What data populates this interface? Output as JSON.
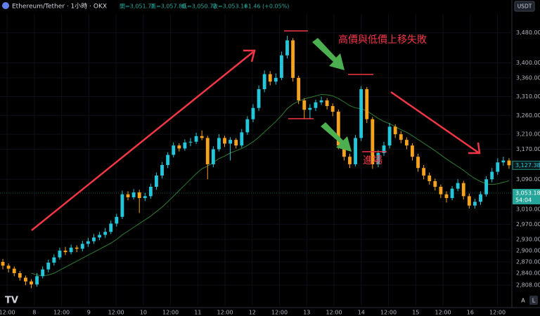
{
  "chart_data": {
    "type": "candlestick",
    "symbol": "Ethereum/Tether · 1小時 · OKX",
    "ohlc_header": [
      "開=3,051.71",
      "高=3,057.80",
      "低=3,050.72",
      "收=3,053.18"
    ],
    "change": "+1.46 (+0.05%)",
    "currency": "USDT",
    "annotations": [
      "高價與低價上移失敗",
      "進場"
    ],
    "buttons": [
      "A",
      "L"
    ],
    "up_color": "#26c6da",
    "down_color": "#f5a21c",
    "ma_color": "#2e7d32",
    "ylim": [
      2754,
      3530
    ],
    "yticks": [
      {
        "value": 3480,
        "label": "3,480.00"
      },
      {
        "value": 3400,
        "label": "3,400.00"
      },
      {
        "value": 3360,
        "label": "3,360.00"
      },
      {
        "value": 3310,
        "label": "3,310.00"
      },
      {
        "value": 3260,
        "label": "3,260.00"
      },
      {
        "value": 3210,
        "label": "3,210.00"
      },
      {
        "value": 3170,
        "label": "3,170.00"
      },
      {
        "value": 3090,
        "label": "3,090.00"
      },
      {
        "value": 3010,
        "label": "3,010.00"
      },
      {
        "value": 2970,
        "label": "2,970.00"
      },
      {
        "value": 2930,
        "label": "2,930.00"
      },
      {
        "value": 2900,
        "label": "2,900.00"
      },
      {
        "value": 2870,
        "label": "2,870.00"
      },
      {
        "value": 2840,
        "label": "2,840.00"
      },
      {
        "value": 2808,
        "label": "2,808.00"
      }
    ],
    "xlim": [
      -0.5,
      89.5
    ],
    "xticks": [
      {
        "value": 0.75,
        "label": "12:00"
      },
      {
        "value": 5.54,
        "label": "8"
      },
      {
        "value": 10.33,
        "label": "12:00"
      },
      {
        "value": 15.12,
        "label": "9"
      },
      {
        "value": 19.91,
        "label": "12:00"
      },
      {
        "value": 24.7,
        "label": "10"
      },
      {
        "value": 29.49,
        "label": "12:00"
      },
      {
        "value": 34.28,
        "label": "11"
      },
      {
        "value": 39.07,
        "label": "12:00"
      },
      {
        "value": 43.86,
        "label": "12"
      },
      {
        "value": 48.65,
        "label": "12:00"
      },
      {
        "value": 53.44,
        "label": "13"
      },
      {
        "value": 58.23,
        "label": "12:00"
      },
      {
        "value": 63.02,
        "label": "14"
      },
      {
        "value": 67.81,
        "label": "12:00"
      },
      {
        "value": 72.6,
        "label": "15"
      },
      {
        "value": 77.39,
        "label": "12:00"
      },
      {
        "value": 82.18,
        "label": "16"
      },
      {
        "value": 86.97,
        "label": "12:00"
      }
    ],
    "last_price": {
      "value": 3127.38,
      "label": "3,127.38"
    },
    "current_price": {
      "value": 3053.18,
      "label": "3,053.18",
      "countdown": "54:04"
    },
    "candles": [
      [
        2870,
        2878,
        2850,
        2860
      ],
      [
        2860,
        2866,
        2842,
        2852
      ],
      [
        2852,
        2858,
        2832,
        2840
      ],
      [
        2840,
        2846,
        2820,
        2828
      ],
      [
        2828,
        2834,
        2808,
        2818
      ],
      [
        2818,
        2824,
        2800,
        2810
      ],
      [
        2810,
        2840,
        2804,
        2832
      ],
      [
        2832,
        2858,
        2826,
        2850
      ],
      [
        2850,
        2876,
        2842,
        2868
      ],
      [
        2868,
        2890,
        2860,
        2882
      ],
      [
        2882,
        2908,
        2876,
        2900
      ],
      [
        2900,
        2910,
        2888,
        2896
      ],
      [
        2896,
        2916,
        2890,
        2908
      ],
      [
        2908,
        2914,
        2896,
        2905
      ],
      [
        2905,
        2926,
        2898,
        2918
      ],
      [
        2918,
        2934,
        2910,
        2925
      ],
      [
        2925,
        2944,
        2918,
        2935
      ],
      [
        2935,
        2950,
        2928,
        2942
      ],
      [
        2942,
        2960,
        2934,
        2950
      ],
      [
        2950,
        2980,
        2944,
        2972
      ],
      [
        2972,
        2998,
        2964,
        2990
      ],
      [
        2990,
        3060,
        2984,
        3050
      ],
      [
        3050,
        3058,
        3034,
        3042
      ],
      [
        3042,
        3064,
        3036,
        3055
      ],
      [
        3055,
        3062,
        3000,
        3040
      ],
      [
        3040,
        3054,
        3032,
        3045
      ],
      [
        3045,
        3078,
        3038,
        3070
      ],
      [
        3070,
        3108,
        3062,
        3100
      ],
      [
        3100,
        3136,
        3092,
        3128
      ],
      [
        3128,
        3162,
        3120,
        3155
      ],
      [
        3155,
        3188,
        3148,
        3180
      ],
      [
        3180,
        3186,
        3164,
        3172
      ],
      [
        3172,
        3196,
        3166,
        3188
      ],
      [
        3188,
        3200,
        3178,
        3190
      ],
      [
        3190,
        3214,
        3184,
        3205
      ],
      [
        3205,
        3220,
        3194,
        3200
      ],
      [
        3200,
        3206,
        3090,
        3130
      ],
      [
        3130,
        3178,
        3122,
        3170
      ],
      [
        3170,
        3210,
        3164,
        3200
      ],
      [
        3200,
        3206,
        3176,
        3185
      ],
      [
        3185,
        3202,
        3140,
        3195
      ],
      [
        3195,
        3200,
        3172,
        3180
      ],
      [
        3180,
        3224,
        3174,
        3215
      ],
      [
        3215,
        3258,
        3208,
        3250
      ],
      [
        3250,
        3290,
        3242,
        3280
      ],
      [
        3280,
        3340,
        3272,
        3330
      ],
      [
        3330,
        3380,
        3322,
        3370
      ],
      [
        3370,
        3378,
        3340,
        3350
      ],
      [
        3350,
        3372,
        3342,
        3360
      ],
      [
        3360,
        3430,
        3354,
        3420
      ],
      [
        3420,
        3472,
        3412,
        3460
      ],
      [
        3460,
        3466,
        3350,
        3360
      ],
      [
        3360,
        3366,
        3290,
        3300
      ],
      [
        3300,
        3306,
        3250,
        3275
      ],
      [
        3275,
        3290,
        3250,
        3280
      ],
      [
        3280,
        3302,
        3272,
        3295
      ],
      [
        3295,
        3310,
        3288,
        3300
      ],
      [
        3300,
        3306,
        3276,
        3285
      ],
      [
        3285,
        3292,
        3258,
        3270
      ],
      [
        3270,
        3276,
        3170,
        3180
      ],
      [
        3180,
        3188,
        3140,
        3150
      ],
      [
        3150,
        3158,
        3120,
        3130
      ],
      [
        3130,
        3208,
        3124,
        3200
      ],
      [
        3200,
        3338,
        3192,
        3330
      ],
      [
        3330,
        3336,
        3240,
        3250
      ],
      [
        3250,
        3256,
        3118,
        3130
      ],
      [
        3130,
        3168,
        3122,
        3160
      ],
      [
        3160,
        3190,
        3152,
        3180
      ],
      [
        3180,
        3240,
        3172,
        3230
      ],
      [
        3230,
        3236,
        3200,
        3210
      ],
      [
        3210,
        3218,
        3186,
        3195
      ],
      [
        3195,
        3202,
        3170,
        3180
      ],
      [
        3180,
        3186,
        3140,
        3150
      ],
      [
        3150,
        3158,
        3110,
        3120
      ],
      [
        3120,
        3128,
        3090,
        3100
      ],
      [
        3100,
        3108,
        3076,
        3085
      ],
      [
        3085,
        3092,
        3060,
        3070
      ],
      [
        3070,
        3076,
        3040,
        3050
      ],
      [
        3050,
        3058,
        3028,
        3040
      ],
      [
        3040,
        3072,
        3034,
        3065
      ],
      [
        3065,
        3090,
        3058,
        3080
      ],
      [
        3080,
        3086,
        3036,
        3045
      ],
      [
        3045,
        3052,
        3012,
        3020
      ],
      [
        3020,
        3038,
        3012,
        3030
      ],
      [
        3030,
        3058,
        3022,
        3050
      ],
      [
        3050,
        3098,
        3044,
        3090
      ],
      [
        3090,
        3120,
        3082,
        3110
      ],
      [
        3110,
        3146,
        3102,
        3135
      ],
      [
        3135,
        3150,
        3126,
        3140
      ],
      [
        3140,
        3146,
        3118,
        3127.38
      ]
    ],
    "ma": [
      null,
      null,
      null,
      null,
      null,
      2840,
      2835,
      2833,
      2835,
      2840,
      2848,
      2856,
      2864,
      2872,
      2880,
      2888,
      2896,
      2904,
      2912,
      2920,
      2930,
      2942,
      2952,
      2962,
      2972,
      2982,
      2992,
      3004,
      3016,
      3030,
      3045,
      3060,
      3075,
      3090,
      3105,
      3118,
      3125,
      3135,
      3145,
      3152,
      3160,
      3166,
      3172,
      3180,
      3190,
      3202,
      3216,
      3230,
      3244,
      3260,
      3278,
      3290,
      3298,
      3304,
      3308,
      3312,
      3316,
      3315,
      3312,
      3305,
      3296,
      3286,
      3280,
      3278,
      3272,
      3262,
      3252,
      3244,
      3238,
      3230,
      3222,
      3215,
      3206,
      3196,
      3186,
      3176,
      3166,
      3155,
      3144,
      3134,
      3124,
      3114,
      3102,
      3092,
      3084,
      3078,
      3076,
      3078,
      3082,
      3086
    ]
  }
}
